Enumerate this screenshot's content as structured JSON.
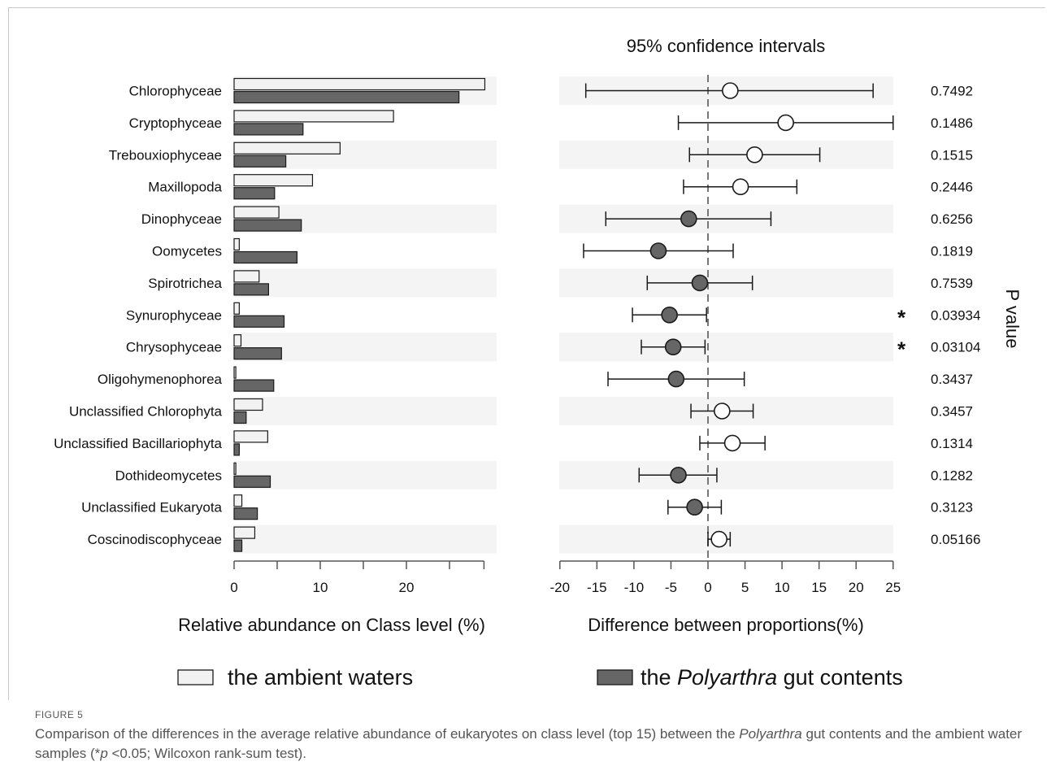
{
  "figure": {
    "label": "FIGURE 5",
    "caption_parts": [
      {
        "t": "Comparison of the differences in the average relative abundance of eukaryotes on class level (top 15) between the ",
        "i": false
      },
      {
        "t": "Polyarthra",
        "i": true
      },
      {
        "t": " gut contents and the ambient water samples (*",
        "i": false
      },
      {
        "t": "p",
        "i": true
      },
      {
        "t": " <0.05; Wilcoxon rank-sum test).",
        "i": false
      }
    ]
  },
  "chart_data": [
    {
      "type": "bar",
      "orientation": "horizontal",
      "xlabel": "Relative abundance on Class level (%)",
      "xticks": [
        0,
        10,
        20
      ],
      "xlim": [
        0,
        29
      ],
      "categories": [
        "Chlorophyceae",
        "Cryptophyceae",
        "Trebouxiophyceae",
        "Maxillopoda",
        "Dinophyceae",
        "Oomycetes",
        "Spirotrichea",
        "Synurophyceae",
        "Chrysophyceae",
        "Oligohymenophorea",
        "Unclassified Chlorophyta",
        "Unclassified Bacillariophyta",
        "Dothideomycetes",
        "Unclassified Eukaryota",
        "Coscinodiscophyceae"
      ],
      "series": [
        {
          "name": "the ambient waters",
          "color": "#f2f2f2",
          "values": [
            29.1,
            18.5,
            12.3,
            9.1,
            5.2,
            0.6,
            2.9,
            0.6,
            0.8,
            0.2,
            3.3,
            3.9,
            0.2,
            0.9,
            2.4
          ]
        },
        {
          "name": "the Polyarthra gut contents",
          "color": "#666666",
          "values": [
            26.1,
            8.0,
            6.0,
            4.7,
            7.8,
            7.3,
            4.0,
            5.8,
            5.5,
            4.6,
            1.4,
            0.6,
            4.2,
            2.7,
            0.9
          ]
        }
      ],
      "legend_position": "bottom"
    },
    {
      "type": "scatter",
      "subtype": "error-bar",
      "title": "95% confidence intervals",
      "xlabel": "Difference between proportions(%)",
      "right_label": "P value",
      "xticks": [
        -20,
        -15,
        -10,
        -5,
        0,
        5,
        10,
        15,
        20,
        25
      ],
      "xlim": [
        -20,
        25
      ],
      "reference_line": 0,
      "points": [
        {
          "category": "Chlorophyceae",
          "diff": 3.0,
          "ci": [
            -16.5,
            22.3
          ],
          "p": "0.7492",
          "sig": false,
          "group": "ambient"
        },
        {
          "category": "Cryptophyceae",
          "diff": 10.5,
          "ci": [
            -4.0,
            25.0
          ],
          "p": "0.1486",
          "sig": false,
          "group": "ambient"
        },
        {
          "category": "Trebouxiophyceae",
          "diff": 6.3,
          "ci": [
            -2.5,
            15.1
          ],
          "p": "0.1515",
          "sig": false,
          "group": "ambient"
        },
        {
          "category": "Maxillopoda",
          "diff": 4.4,
          "ci": [
            -3.3,
            12.0
          ],
          "p": "0.2446",
          "sig": false,
          "group": "ambient"
        },
        {
          "category": "Dinophyceae",
          "diff": -2.6,
          "ci": [
            -13.8,
            8.5
          ],
          "p": "0.6256",
          "sig": false,
          "group": "gut"
        },
        {
          "category": "Oomycetes",
          "diff": -6.7,
          "ci": [
            -16.8,
            3.4
          ],
          "p": "0.1819",
          "sig": false,
          "group": "gut"
        },
        {
          "category": "Spirotrichea",
          "diff": -1.1,
          "ci": [
            -8.2,
            6.0
          ],
          "p": "0.7539",
          "sig": false,
          "group": "gut"
        },
        {
          "category": "Synurophyceae",
          "diff": -5.2,
          "ci": [
            -10.2,
            -0.2
          ],
          "p": "0.03934",
          "sig": true,
          "group": "gut"
        },
        {
          "category": "Chrysophyceae",
          "diff": -4.7,
          "ci": [
            -9.0,
            -0.4
          ],
          "p": "0.03104",
          "sig": true,
          "group": "gut"
        },
        {
          "category": "Oligohymenophorea",
          "diff": -4.3,
          "ci": [
            -13.5,
            4.9
          ],
          "p": "0.3437",
          "sig": false,
          "group": "gut"
        },
        {
          "category": "Unclassified Chlorophyta",
          "diff": 1.9,
          "ci": [
            -2.3,
            6.1
          ],
          "p": "0.3457",
          "sig": false,
          "group": "ambient"
        },
        {
          "category": "Unclassified Bacillariophyta",
          "diff": 3.3,
          "ci": [
            -1.1,
            7.7
          ],
          "p": "0.1314",
          "sig": false,
          "group": "ambient"
        },
        {
          "category": "Dothideomycetes",
          "diff": -4.0,
          "ci": [
            -9.3,
            1.2
          ],
          "p": "0.1282",
          "sig": false,
          "group": "gut"
        },
        {
          "category": "Unclassified Eukaryota",
          "diff": -1.8,
          "ci": [
            -5.4,
            1.8
          ],
          "p": "0.3123",
          "sig": false,
          "group": "gut"
        },
        {
          "category": "Coscinodiscophyceae",
          "diff": 1.5,
          "ci": [
            0.0,
            3.0
          ],
          "p": "0.05166",
          "sig": false,
          "group": "ambient"
        }
      ]
    }
  ],
  "legend": {
    "items": [
      {
        "parts": [
          {
            "t": "the ambient waters",
            "i": false
          }
        ],
        "color": "#f2f2f2"
      },
      {
        "parts": [
          {
            "t": "the ",
            "i": false
          },
          {
            "t": "Polyarthra",
            "i": true
          },
          {
            "t": " gut contents",
            "i": false
          }
        ],
        "color": "#666666"
      }
    ]
  },
  "colors": {
    "row_shade": "#f4f4f4",
    "ambient_fill": "#f2f2f2",
    "gut_fill": "#666666",
    "stroke": "#1a1a1a",
    "axis": "#555555",
    "zero_line": "#777777"
  }
}
